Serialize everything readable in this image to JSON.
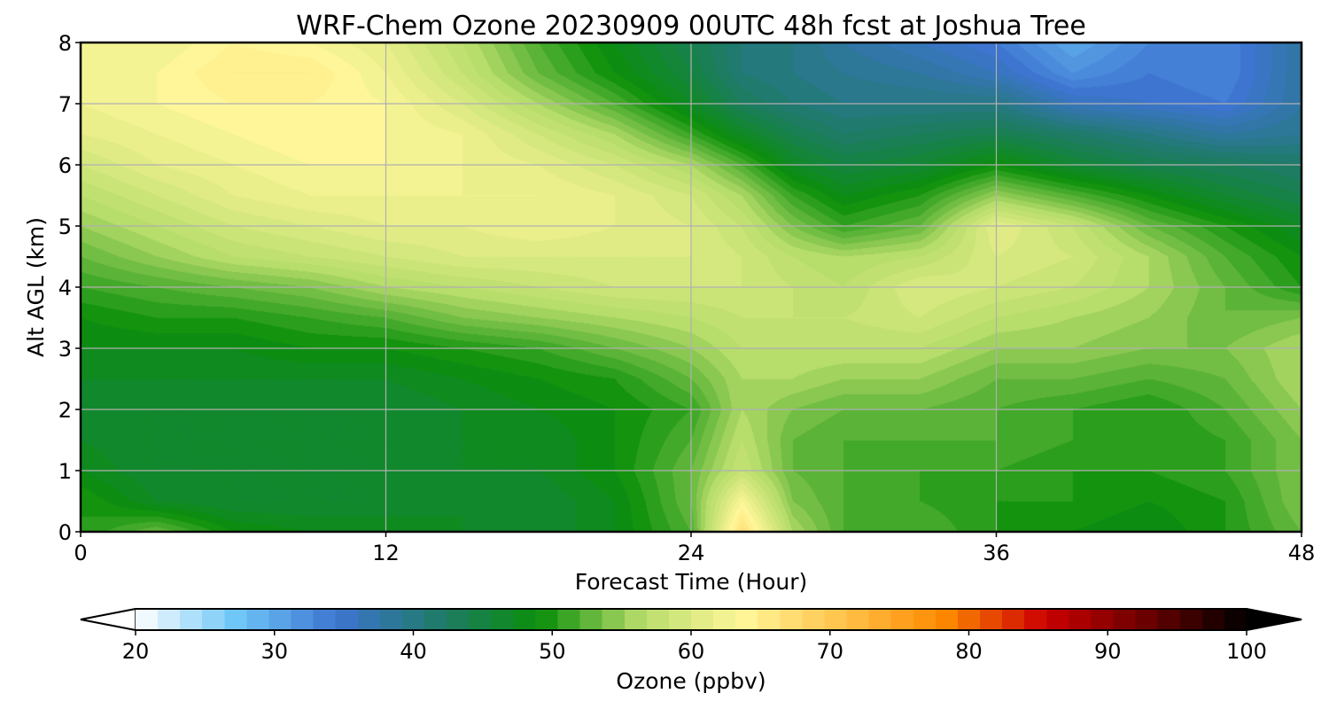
{
  "chart_data": {
    "type": "heatmap",
    "title": "WRF-Chem Ozone  20230909 00UTC 48h fcst at Joshua Tree",
    "xlabel": "Forecast Time (Hour)",
    "ylabel": "Alt AGL (km)",
    "xlim": [
      0,
      48
    ],
    "ylim": [
      0,
      8
    ],
    "x_ticks": [
      0,
      12,
      24,
      36,
      48
    ],
    "y_ticks": [
      0,
      1,
      2,
      3,
      4,
      5,
      6,
      7,
      8
    ],
    "grid": true,
    "colorbar": {
      "label": "Ozone  (ppbv)",
      "range": [
        20,
        100
      ],
      "ticks": [
        20,
        30,
        40,
        50,
        60,
        70,
        80,
        90,
        100
      ],
      "extend": "both",
      "colors": [
        "#ffffff",
        "#6ec6f7",
        "#3d74d0",
        "#1f7a6a",
        "#0a8f0a",
        "#b6dc6a",
        "#fff79a",
        "#ffc24a",
        "#ff8a00",
        "#cc0000",
        "#6b0000",
        "#000000"
      ]
    },
    "x": [
      0,
      3,
      6,
      9,
      12,
      15,
      18,
      21,
      24,
      26,
      28,
      30,
      33,
      36,
      39,
      42,
      45,
      48
    ],
    "y": [
      0,
      0.5,
      1,
      1.5,
      2,
      2.5,
      3,
      3.5,
      4,
      4.5,
      5,
      5.5,
      6,
      6.5,
      7,
      7.5,
      8
    ],
    "z": [
      [
        50,
        53,
        49,
        48,
        48,
        47,
        46,
        48,
        52,
        67,
        56,
        52,
        52,
        50,
        49,
        48,
        50,
        53
      ],
      [
        50,
        47,
        46,
        46,
        46,
        47,
        46,
        48,
        53,
        63,
        54,
        52,
        51,
        50,
        50,
        49,
        50,
        54
      ],
      [
        48,
        46,
        46,
        46,
        46,
        47,
        47,
        49,
        53,
        58,
        53,
        52,
        51,
        51,
        50,
        50,
        51,
        54
      ],
      [
        47,
        46,
        46,
        46,
        46,
        47,
        47,
        49,
        52,
        57,
        53,
        52,
        52,
        52,
        51,
        50,
        51,
        54
      ],
      [
        47,
        46,
        46,
        46,
        46,
        47,
        48,
        49,
        51,
        56,
        54,
        53,
        53,
        52,
        51,
        50,
        52,
        55
      ],
      [
        47,
        47,
        47,
        47,
        47,
        48,
        49,
        50,
        53,
        56,
        56,
        55,
        55,
        53,
        53,
        52,
        53,
        56
      ],
      [
        48,
        48,
        48,
        49,
        49,
        50,
        51,
        53,
        55,
        57,
        57,
        57,
        57,
        55,
        55,
        54,
        54,
        56
      ],
      [
        49,
        50,
        50,
        51,
        52,
        54,
        55,
        56,
        57,
        58,
        58,
        58,
        59,
        57,
        56,
        55,
        53,
        54
      ],
      [
        51,
        52,
        53,
        54,
        56,
        57,
        58,
        59,
        59,
        59,
        58,
        57,
        60,
        59,
        58,
        56,
        53,
        50
      ],
      [
        53,
        55,
        57,
        58,
        59,
        60,
        60,
        60,
        60,
        59,
        57,
        56,
        57,
        60,
        59,
        56,
        52,
        49
      ],
      [
        55,
        57,
        59,
        60,
        61,
        61,
        62,
        61,
        60,
        58,
        54,
        51,
        53,
        61,
        58,
        53,
        50,
        47
      ],
      [
        57,
        59,
        61,
        62,
        62,
        62,
        62,
        61,
        59,
        56,
        51,
        48,
        50,
        55,
        52,
        49,
        46,
        44
      ],
      [
        59,
        61,
        62,
        63,
        63,
        62,
        61,
        59,
        56,
        52,
        47,
        45,
        46,
        49,
        46,
        44,
        43,
        42
      ],
      [
        61,
        62,
        63,
        64,
        63,
        62,
        59,
        56,
        51,
        47,
        44,
        42,
        43,
        44,
        42,
        40,
        38,
        39
      ],
      [
        62,
        63,
        64,
        64,
        63,
        60,
        56,
        52,
        47,
        43,
        41,
        40,
        40,
        40,
        36,
        35,
        34,
        38
      ],
      [
        62,
        63,
        65,
        65,
        62,
        58,
        53,
        49,
        45,
        41,
        40,
        39,
        38,
        36,
        32,
        34,
        33,
        38
      ],
      [
        62,
        62,
        64,
        63,
        61,
        57,
        52,
        48,
        44,
        41,
        40,
        38,
        36,
        34,
        30,
        33,
        33,
        38
      ]
    ]
  }
}
